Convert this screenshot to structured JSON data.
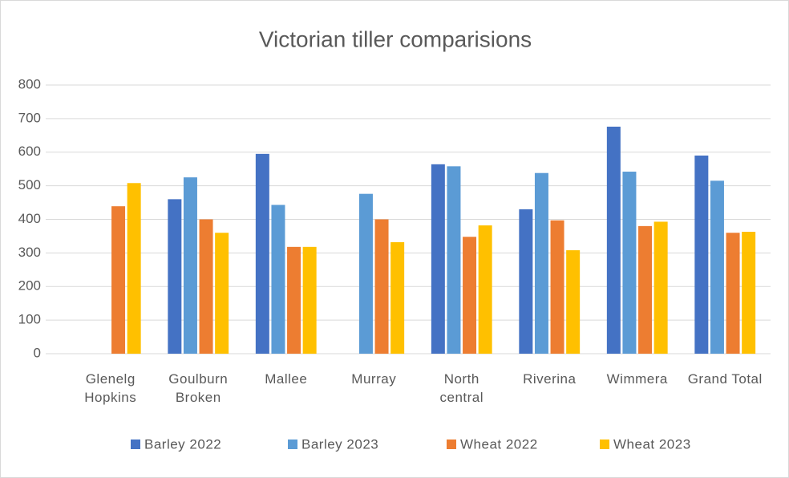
{
  "chart_data": {
    "type": "bar",
    "title": "Victorian tiller comparisions",
    "categories": [
      "Glenelg Hopkins",
      "Goulburn Broken",
      "Mallee",
      "Murray",
      "North central",
      "Riverina",
      "Wimmera",
      "Grand Total"
    ],
    "series": [
      {
        "name": "Barley 2022",
        "color": "#4472c4",
        "values": [
          null,
          460,
          595,
          null,
          564,
          430,
          676,
          590
        ]
      },
      {
        "name": "Barley 2023",
        "color": "#5b9bd5",
        "values": [
          null,
          525,
          443,
          476,
          558,
          538,
          542,
          515
        ]
      },
      {
        "name": "Wheat 2022",
        "color": "#ed7d31",
        "values": [
          439,
          400,
          318,
          400,
          348,
          397,
          380,
          360
        ]
      },
      {
        "name": "Wheat 2023",
        "color": "#ffc000",
        "values": [
          508,
          360,
          318,
          332,
          382,
          308,
          393,
          363
        ]
      }
    ],
    "ylim": [
      0,
      800
    ],
    "yticks": [
      0,
      100,
      200,
      300,
      400,
      500,
      600,
      700,
      800
    ],
    "grid": true,
    "legend": "bottom"
  }
}
